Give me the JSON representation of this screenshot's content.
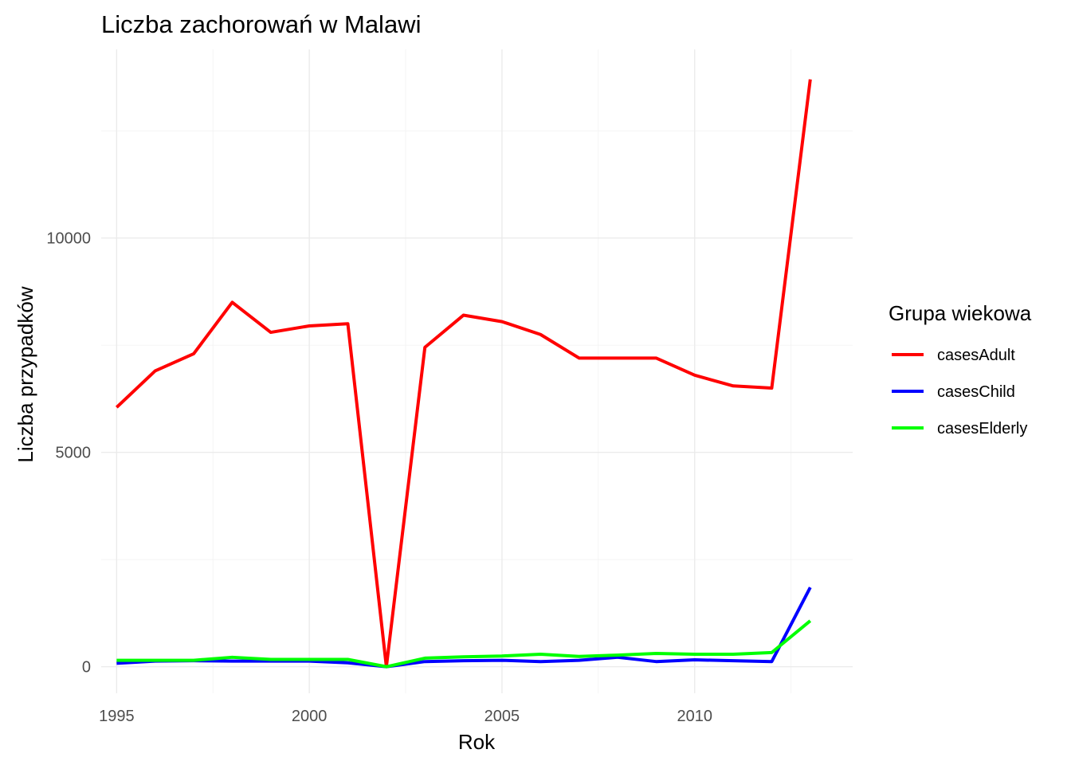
{
  "chart_data": {
    "type": "line",
    "title": "Liczba zachorowań w Malawi",
    "xlabel": "Rok",
    "ylabel": "Liczba przypadków",
    "xlim": [
      1994.6,
      2014.1
    ],
    "ylim": [
      -620,
      14400
    ],
    "x_ticks": [
      1995,
      2000,
      2005,
      2010
    ],
    "y_ticks": [
      0,
      5000,
      10000
    ],
    "x": [
      1995,
      1996,
      1997,
      1998,
      1999,
      2000,
      2001,
      2002,
      2003,
      2004,
      2005,
      2006,
      2007,
      2008,
      2009,
      2010,
      2011,
      2012,
      2013
    ],
    "series": [
      {
        "name": "casesAdult",
        "color": "#ff0000",
        "values": [
          6050,
          6900,
          7300,
          8500,
          7800,
          7950,
          8000,
          0,
          7450,
          8200,
          8050,
          7750,
          7200,
          7200,
          7200,
          6800,
          6550,
          6500,
          13700
        ]
      },
      {
        "name": "casesChild",
        "color": "#0000ff",
        "values": [
          80,
          130,
          140,
          130,
          130,
          130,
          90,
          0,
          120,
          140,
          150,
          120,
          150,
          220,
          120,
          160,
          140,
          120,
          1850
        ]
      },
      {
        "name": "casesElderly",
        "color": "#00ff00",
        "values": [
          150,
          150,
          150,
          220,
          170,
          170,
          170,
          0,
          200,
          230,
          250,
          290,
          240,
          270,
          310,
          290,
          290,
          330,
          1070
        ]
      }
    ],
    "legend": {
      "title": "Grupa wiekowa",
      "position": "right"
    },
    "grid": true
  }
}
